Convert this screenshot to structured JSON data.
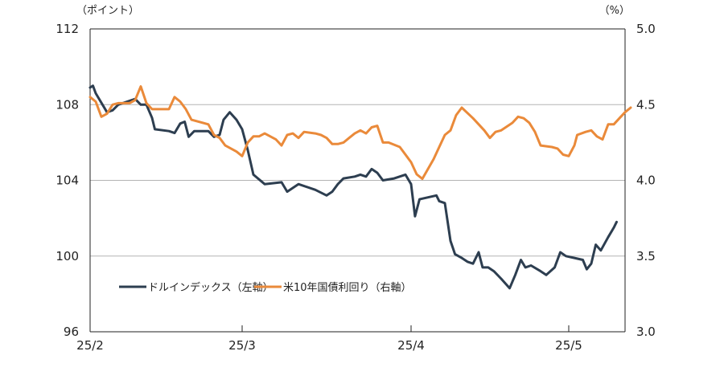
{
  "chart_data": {
    "type": "line",
    "left_unit": "（ポイント）",
    "right_unit": "（%）",
    "left_axis": {
      "min": 96,
      "max": 112,
      "ticks": [
        "112",
        "108",
        "104",
        "100",
        "96"
      ]
    },
    "right_axis": {
      "min": 3.0,
      "max": 5.0,
      "ticks": [
        "5.0",
        "4.5",
        "4.0",
        "3.5",
        "3.0"
      ]
    },
    "x_axis": {
      "min": 0,
      "max": 95,
      "labels": [
        {
          "label": "25/2",
          "x": 0
        },
        {
          "label": "25/3",
          "x": 27
        },
        {
          "label": "25/4",
          "x": 57
        },
        {
          "label": "25/5",
          "x": 85
        }
      ]
    },
    "grid": "horizontal",
    "legend_placement": "bottom-left",
    "series": [
      {
        "name": "ドルインデックス（左軸）",
        "axis": "left",
        "color": "#2d3e50",
        "points": [
          [
            0,
            108.9
          ],
          [
            0.5,
            109.0
          ],
          [
            1,
            108.6
          ],
          [
            2,
            108.1
          ],
          [
            3,
            107.6
          ],
          [
            4,
            107.7
          ],
          [
            5,
            108.0
          ],
          [
            6,
            108.1
          ],
          [
            7,
            108.2
          ],
          [
            8,
            108.3
          ],
          [
            9,
            108.0
          ],
          [
            10,
            108.0
          ],
          [
            11,
            107.3
          ],
          [
            11.5,
            106.7
          ],
          [
            14,
            106.6
          ],
          [
            15,
            106.5
          ],
          [
            16,
            107.0
          ],
          [
            16.8,
            107.1
          ],
          [
            17.5,
            106.3
          ],
          [
            18.5,
            106.6
          ],
          [
            20,
            106.6
          ],
          [
            21,
            106.6
          ],
          [
            22,
            106.3
          ],
          [
            23,
            106.4
          ],
          [
            23.7,
            107.2
          ],
          [
            24.8,
            107.6
          ],
          [
            26,
            107.2
          ],
          [
            27,
            106.7
          ],
          [
            28,
            105.6
          ],
          [
            29,
            104.3
          ],
          [
            31,
            103.8
          ],
          [
            34,
            103.9
          ],
          [
            35,
            103.4
          ],
          [
            37,
            103.8
          ],
          [
            40,
            103.5
          ],
          [
            42,
            103.2
          ],
          [
            43,
            103.4
          ],
          [
            44,
            103.8
          ],
          [
            45,
            104.1
          ],
          [
            47,
            104.2
          ],
          [
            48,
            104.3
          ],
          [
            49,
            104.2
          ],
          [
            50,
            104.6
          ],
          [
            51,
            104.4
          ],
          [
            52,
            104.0
          ],
          [
            54,
            104.1
          ],
          [
            56,
            104.3
          ],
          [
            57,
            103.8
          ],
          [
            57.7,
            102.1
          ],
          [
            58.5,
            103.0
          ],
          [
            60,
            103.1
          ],
          [
            61.5,
            103.2
          ],
          [
            62,
            102.9
          ],
          [
            63,
            102.8
          ],
          [
            64,
            100.8
          ],
          [
            64.8,
            100.1
          ],
          [
            66,
            99.9
          ],
          [
            67,
            99.7
          ],
          [
            68,
            99.6
          ],
          [
            69,
            100.2
          ],
          [
            69.7,
            99.4
          ],
          [
            70.7,
            99.4
          ],
          [
            71.7,
            99.2
          ],
          [
            73,
            98.8
          ],
          [
            74.5,
            98.3
          ],
          [
            75.5,
            99.0
          ],
          [
            76.5,
            99.8
          ],
          [
            77.3,
            99.4
          ],
          [
            78.3,
            99.5
          ],
          [
            80,
            99.2
          ],
          [
            81,
            99.0
          ],
          [
            82.5,
            99.4
          ],
          [
            83.5,
            100.2
          ],
          [
            84.5,
            100.0
          ],
          [
            86,
            99.9
          ],
          [
            87.5,
            99.8
          ],
          [
            88.2,
            99.3
          ],
          [
            89,
            99.6
          ],
          [
            89.8,
            100.6
          ],
          [
            90.7,
            100.3
          ],
          [
            92,
            101.0
          ],
          [
            93,
            101.5
          ],
          [
            93.5,
            101.8
          ]
        ]
      },
      {
        "name": "米10年国債利回り（右軸）",
        "axis": "right",
        "color": "#ea8a3a",
        "points": [
          [
            0,
            4.55
          ],
          [
            1,
            4.52
          ],
          [
            2,
            4.42
          ],
          [
            3,
            4.44
          ],
          [
            4,
            4.5
          ],
          [
            5,
            4.51
          ],
          [
            7,
            4.51
          ],
          [
            8,
            4.53
          ],
          [
            9,
            4.62
          ],
          [
            10,
            4.51
          ],
          [
            11,
            4.47
          ],
          [
            14,
            4.47
          ],
          [
            15,
            4.55
          ],
          [
            16,
            4.52
          ],
          [
            17,
            4.47
          ],
          [
            18,
            4.4
          ],
          [
            21,
            4.37
          ],
          [
            22,
            4.3
          ],
          [
            23,
            4.28
          ],
          [
            24,
            4.23
          ],
          [
            26,
            4.19
          ],
          [
            27,
            4.16
          ],
          [
            28,
            4.25
          ],
          [
            29,
            4.29
          ],
          [
            30,
            4.29
          ],
          [
            31,
            4.31
          ],
          [
            33,
            4.27
          ],
          [
            34,
            4.23
          ],
          [
            35,
            4.3
          ],
          [
            36,
            4.31
          ],
          [
            37,
            4.28
          ],
          [
            38,
            4.32
          ],
          [
            40,
            4.31
          ],
          [
            41,
            4.3
          ],
          [
            42,
            4.28
          ],
          [
            43,
            4.24
          ],
          [
            44,
            4.24
          ],
          [
            45,
            4.25
          ],
          [
            46,
            4.28
          ],
          [
            47,
            4.31
          ],
          [
            48,
            4.33
          ],
          [
            49,
            4.31
          ],
          [
            50,
            4.35
          ],
          [
            51,
            4.36
          ],
          [
            52,
            4.25
          ],
          [
            53,
            4.25
          ],
          [
            55,
            4.22
          ],
          [
            57,
            4.12
          ],
          [
            58,
            4.04
          ],
          [
            59,
            4.01
          ],
          [
            61,
            4.14
          ],
          [
            62,
            4.22
          ],
          [
            63,
            4.3
          ],
          [
            64,
            4.33
          ],
          [
            65,
            4.43
          ],
          [
            66,
            4.48
          ],
          [
            68,
            4.41
          ],
          [
            70,
            4.33
          ],
          [
            71,
            4.28
          ],
          [
            72,
            4.32
          ],
          [
            73,
            4.33
          ],
          [
            75,
            4.38
          ],
          [
            76,
            4.42
          ],
          [
            77,
            4.41
          ],
          [
            78,
            4.38
          ],
          [
            79,
            4.32
          ],
          [
            80,
            4.23
          ],
          [
            82,
            4.22
          ],
          [
            83,
            4.21
          ],
          [
            84,
            4.17
          ],
          [
            85,
            4.16
          ],
          [
            86,
            4.23
          ],
          [
            86.5,
            4.3
          ],
          [
            88,
            4.32
          ],
          [
            89,
            4.33
          ],
          [
            90,
            4.29
          ],
          [
            91,
            4.27
          ],
          [
            92,
            4.37
          ],
          [
            93,
            4.37
          ],
          [
            94,
            4.41
          ],
          [
            95,
            4.45
          ],
          [
            96,
            4.48
          ]
        ]
      }
    ]
  }
}
